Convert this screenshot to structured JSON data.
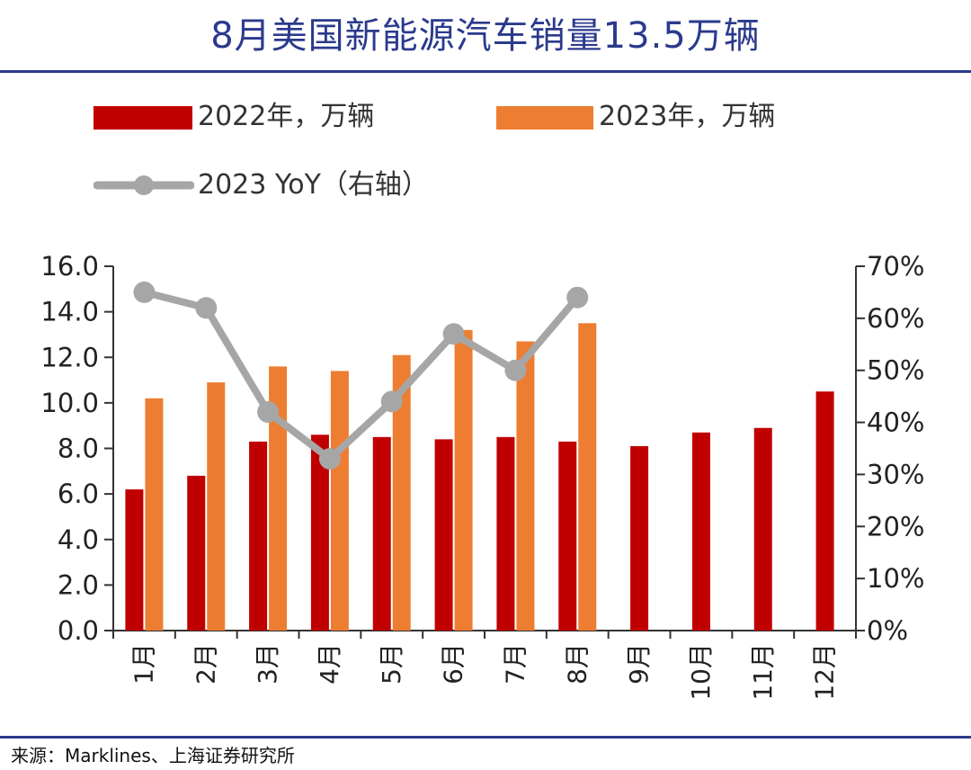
{
  "title": "8月美国新能源汽车销量13.5万辆",
  "source": "来源：Marklines、上海证券研究所",
  "colors": {
    "title": "#2b3a8c",
    "series_2022": "#c00000",
    "series_2023": "#ed7d31",
    "yoy_line": "#a6a6a6",
    "axis": "#333333"
  },
  "chart_data": {
    "type": "bar",
    "categories": [
      "1月",
      "2月",
      "3月",
      "4月",
      "5月",
      "6月",
      "7月",
      "8月",
      "9月",
      "10月",
      "11月",
      "12月"
    ],
    "series": [
      {
        "name": "2022年，万辆",
        "type": "bar",
        "axis": "left",
        "values": [
          6.2,
          6.8,
          8.3,
          8.6,
          8.5,
          8.4,
          8.5,
          8.3,
          8.1,
          8.7,
          8.9,
          10.5
        ]
      },
      {
        "name": "2023年，万辆",
        "type": "bar",
        "axis": "left",
        "values": [
          10.2,
          10.9,
          11.6,
          11.4,
          12.1,
          13.2,
          12.7,
          13.5,
          null,
          null,
          null,
          null
        ]
      },
      {
        "name": "2023 YoY（右轴）",
        "type": "line",
        "axis": "right",
        "values": [
          65,
          62,
          42,
          33,
          44,
          57,
          50,
          64,
          null,
          null,
          null,
          null
        ]
      }
    ],
    "ylim": [
      0,
      16
    ],
    "y_ticks": [
      "0.0",
      "2.0",
      "4.0",
      "6.0",
      "8.0",
      "10.0",
      "12.0",
      "14.0",
      "16.0"
    ],
    "y2lim": [
      0,
      70
    ],
    "y2_ticks": [
      "0%",
      "10%",
      "20%",
      "30%",
      "40%",
      "50%",
      "60%",
      "70%"
    ],
    "legend_position": "top",
    "grid": false
  }
}
